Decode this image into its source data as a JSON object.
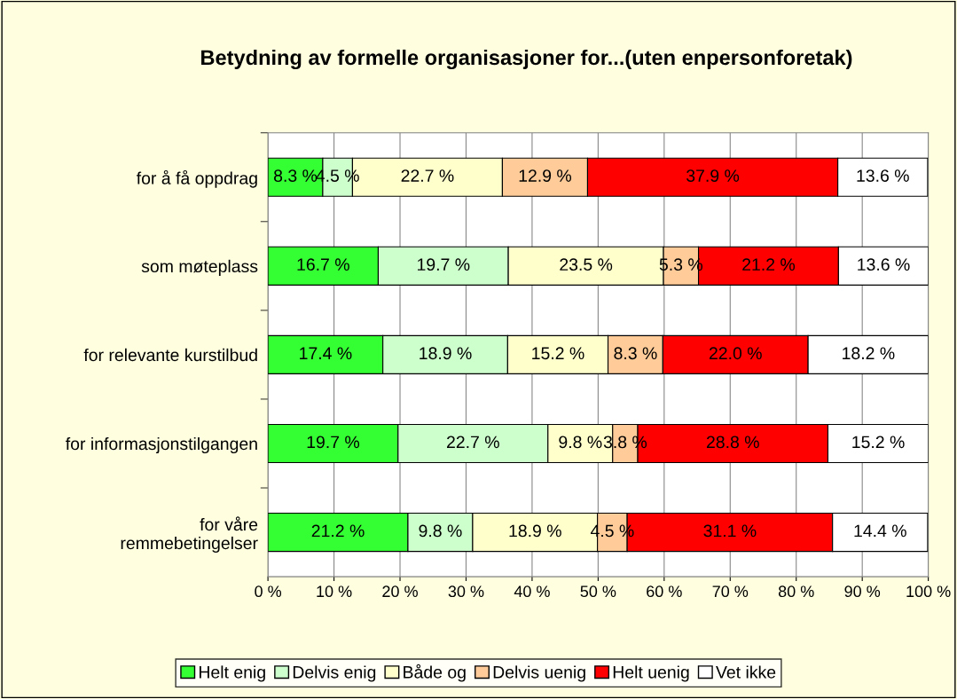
{
  "chart_data": {
    "type": "bar",
    "orientation": "horizontal",
    "stacked": true,
    "title": "Betydning av formelle organisasjoner for...(uten enpersonforetak)",
    "categories": [
      "for å få oppdrag",
      "som møteplass",
      "for relevante kurstilbud",
      "for informasjonstilgangen",
      "for våre\nremmebetingelser"
    ],
    "series": [
      {
        "name": "Helt enig",
        "color": "#33ff33",
        "values": [
          8.3,
          16.7,
          17.4,
          19.7,
          21.2
        ],
        "value_labels": [
          "8.3 %",
          "16.7 %",
          "17.4 %",
          "19.7 %",
          "21.2 %"
        ]
      },
      {
        "name": "Delvis enig",
        "color": "#ccffcc",
        "values": [
          4.5,
          19.7,
          18.9,
          22.7,
          9.8
        ],
        "value_labels": [
          "4.5 %",
          "19.7 %",
          "18.9 %",
          "22.7 %",
          "9.8 %"
        ]
      },
      {
        "name": "Både og",
        "color": "#ffffcc",
        "values": [
          22.7,
          23.5,
          15.2,
          9.8,
          18.9
        ],
        "value_labels": [
          "22.7 %",
          "23.5 %",
          "15.2 %",
          "9.8 %",
          "18.9 %"
        ]
      },
      {
        "name": "Delvis uenig",
        "color": "#ffcc99",
        "values": [
          12.9,
          5.3,
          8.3,
          3.8,
          4.5
        ],
        "value_labels": [
          "12.9 %",
          "5.3 %",
          "8.3 %",
          "3.8 %",
          "4.5 %"
        ]
      },
      {
        "name": "Helt uenig",
        "color": "#ff0000",
        "values": [
          37.9,
          21.2,
          22.0,
          28.8,
          31.1
        ],
        "value_labels": [
          "37.9 %",
          "21.2 %",
          "22.0 %",
          "28.8 %",
          "31.1 %"
        ]
      },
      {
        "name": "Vet ikke",
        "color": "#ffffff",
        "values": [
          13.6,
          13.6,
          18.2,
          15.2,
          14.4
        ],
        "value_labels": [
          "13.6 %",
          "13.6 %",
          "18.2 %",
          "15.2 %",
          "14.4 %"
        ]
      }
    ],
    "xlim": [
      0,
      100
    ],
    "xticks": [
      {
        "value": 0,
        "label": "0 %"
      },
      {
        "value": 10,
        "label": "10 %"
      },
      {
        "value": 20,
        "label": "20 %"
      },
      {
        "value": 30,
        "label": "30 %"
      },
      {
        "value": 40,
        "label": "40 %"
      },
      {
        "value": 50,
        "label": "50 %"
      },
      {
        "value": 60,
        "label": "60 %"
      },
      {
        "value": 70,
        "label": "70 %"
      },
      {
        "value": 80,
        "label": "80 %"
      },
      {
        "value": 90,
        "label": "90 %"
      },
      {
        "value": 100,
        "label": "100 %"
      }
    ],
    "grid": "x",
    "legend": "bottom"
  }
}
